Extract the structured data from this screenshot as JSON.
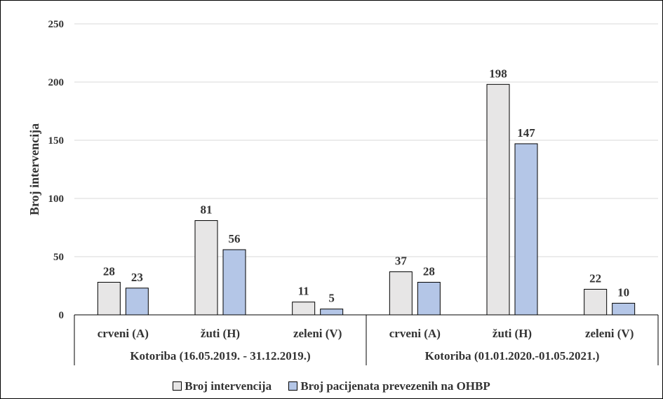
{
  "chart_data": {
    "type": "bar",
    "ylabel": "Broj intervencija",
    "ylim": [
      0,
      250
    ],
    "yticks": [
      0,
      50,
      100,
      150,
      200,
      250
    ],
    "groups": [
      {
        "label": "Kotoriba (16.05.2019. - 31.12.2019.)",
        "categories": [
          "crveni (A)",
          "žuti (H)",
          "zeleni (V)"
        ]
      },
      {
        "label": "Kotoriba (01.01.2020.-01.05.2021.)",
        "categories": [
          "crveni (A)",
          "žuti (H)",
          "zeleni (V)"
        ]
      }
    ],
    "series": [
      {
        "name": "Broj intervencija",
        "color": "#e7e6e6",
        "values": [
          28,
          81,
          11,
          37,
          198,
          22
        ]
      },
      {
        "name": "Broj pacijenata prevezenih na OHBP",
        "color": "#b4c6e7",
        "values": [
          23,
          56,
          5,
          28,
          147,
          10
        ]
      }
    ],
    "grid": true,
    "legend_position": "bottom"
  }
}
